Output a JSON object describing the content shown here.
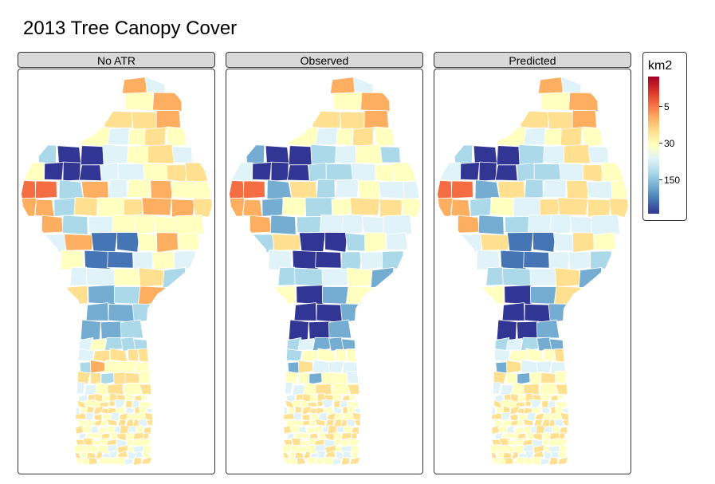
{
  "title": "2013 Tree Canopy Cover",
  "panels": [
    {
      "label": "No ATR",
      "style": "noatr"
    },
    {
      "label": "Observed",
      "style": "observed"
    },
    {
      "label": "Predicted",
      "style": "predicted"
    }
  ],
  "legend": {
    "title": "km2",
    "ticks": [
      {
        "label": "5",
        "value": 5
      },
      {
        "label": "30",
        "value": 30
      },
      {
        "label": "150",
        "value": 150
      }
    ],
    "colors": [
      "#a50026",
      "#d73027",
      "#f46d43",
      "#fdae61",
      "#fee090",
      "#ffffbf",
      "#e0f3f8",
      "#abd9e9",
      "#74add1",
      "#4575b4",
      "#313695"
    ]
  }
}
